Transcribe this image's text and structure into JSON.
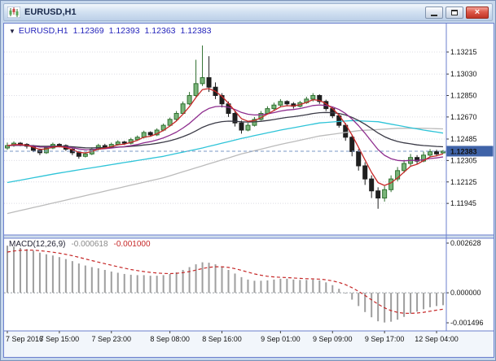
{
  "window": {
    "title": "EURUSD,H1",
    "controls": {
      "close_glyph": "×"
    }
  },
  "header": {
    "expand_glyph": "▼",
    "symbol": "EURUSD,H1",
    "open": "1.12369",
    "high": "1.12393",
    "low": "1.12363",
    "close": "1.12383"
  },
  "macd_header": {
    "label": "MACD(12,26,9)",
    "main_value": "-0.000618",
    "signal_value": "-0.001000"
  },
  "colors": {
    "bull_fill": "#7ab57a",
    "bull_stroke": "#2f6f2f",
    "bear_fill": "#1f1f1f",
    "bear_stroke": "#1f1f1f",
    "wick": "#2f6f2f",
    "ma_fast": "#c62828",
    "ma_medium": "#8e2d8e",
    "ma_slow": "#3a3a46",
    "ma_cyan": "#2ec4d8",
    "ma_long": "#bbbbbb",
    "macd_bar": "#9e9e9e",
    "macd_signal": "#c62828",
    "grid": "#dcdce4",
    "panel_border": "#6b7fce",
    "axis_text": "#111111",
    "price_tag_bg": "#3f63a8",
    "price_tag_text": "#ffffff",
    "divider_fill": "#cfdcec",
    "time_strip_fill": "#f2f6fb"
  },
  "chart_data": [
    {
      "type": "candlestick",
      "title": "EURUSD,H1",
      "symbol": "EURUSD",
      "timeframe": "H1",
      "ylim": [
        1.1168,
        1.1344
      ],
      "y_ticks": [
        "1.13215",
        "1.13030",
        "1.12850",
        "1.12670",
        "1.12485",
        "1.12305",
        "1.12125",
        "1.11945"
      ],
      "current_price": "1.12383",
      "x_ticks": [
        [
          0,
          "7 Sep 2016"
        ],
        [
          8,
          "7 Sep 15:00"
        ],
        [
          16,
          "7 Sep 23:00"
        ],
        [
          25,
          "8 Sep 08:00"
        ],
        [
          33,
          "8 Sep 16:00"
        ],
        [
          42,
          "9 Sep 01:00"
        ],
        [
          50,
          "9 Sep 09:00"
        ],
        [
          58,
          "9 Sep 17:00"
        ],
        [
          66,
          "12 Sep 04:00"
        ]
      ],
      "candles": [
        [
          1.1241,
          1.12455,
          1.12395,
          1.1243
        ],
        [
          1.1243,
          1.12465,
          1.1242,
          1.1245
        ],
        [
          1.1245,
          1.1246,
          1.12425,
          1.1244
        ],
        [
          1.1244,
          1.1245,
          1.12405,
          1.12425
        ],
        [
          1.12425,
          1.12435,
          1.12375,
          1.1239
        ],
        [
          1.1239,
          1.12405,
          1.1235,
          1.1237
        ],
        [
          1.1237,
          1.1242,
          1.1236,
          1.1241
        ],
        [
          1.1241,
          1.12455,
          1.124,
          1.1244
        ],
        [
          1.1244,
          1.1245,
          1.12415,
          1.1243
        ],
        [
          1.1243,
          1.1244,
          1.12385,
          1.124
        ],
        [
          1.124,
          1.1241,
          1.1235,
          1.1237
        ],
        [
          1.1237,
          1.12385,
          1.1232,
          1.1234
        ],
        [
          1.1234,
          1.12375,
          1.1233,
          1.1236
        ],
        [
          1.1236,
          1.12415,
          1.1235,
          1.124
        ],
        [
          1.124,
          1.12445,
          1.1239,
          1.1243
        ],
        [
          1.1243,
          1.12445,
          1.12405,
          1.1242
        ],
        [
          1.1242,
          1.12455,
          1.1241,
          1.1244
        ],
        [
          1.1244,
          1.12475,
          1.1243,
          1.1246
        ],
        [
          1.1246,
          1.1247,
          1.12435,
          1.1245
        ],
        [
          1.1245,
          1.12495,
          1.1244,
          1.1248
        ],
        [
          1.1248,
          1.12515,
          1.1247,
          1.125
        ],
        [
          1.125,
          1.12555,
          1.1249,
          1.1254
        ],
        [
          1.1254,
          1.1255,
          1.12505,
          1.1252
        ],
        [
          1.1252,
          1.12575,
          1.1251,
          1.1256
        ],
        [
          1.1256,
          1.12615,
          1.1255,
          1.126
        ],
        [
          1.126,
          1.12665,
          1.1259,
          1.1265
        ],
        [
          1.1265,
          1.1272,
          1.1264,
          1.127
        ],
        [
          1.127,
          1.128,
          1.1269,
          1.1278
        ],
        [
          1.1278,
          1.1288,
          1.1277,
          1.1285
        ],
        [
          1.1285,
          1.1315,
          1.1284,
          1.1295
        ],
        [
          1.1295,
          1.1327,
          1.1293,
          1.13
        ],
        [
          1.13,
          1.1318,
          1.1288,
          1.1292
        ],
        [
          1.1292,
          1.1296,
          1.1282,
          1.1285
        ],
        [
          1.1285,
          1.1287,
          1.1275,
          1.1278
        ],
        [
          1.1278,
          1.128,
          1.1267,
          1.127
        ],
        [
          1.127,
          1.1272,
          1.1259,
          1.1262
        ],
        [
          1.1262,
          1.1264,
          1.1253,
          1.1256
        ],
        [
          1.1256,
          1.1262,
          1.1255,
          1.126
        ],
        [
          1.126,
          1.1267,
          1.1259,
          1.1265
        ],
        [
          1.1265,
          1.1272,
          1.1264,
          1.127
        ],
        [
          1.127,
          1.1276,
          1.1269,
          1.1274
        ],
        [
          1.1274,
          1.1279,
          1.1272,
          1.1277
        ],
        [
          1.1277,
          1.1282,
          1.1275,
          1.128
        ],
        [
          1.128,
          1.1281,
          1.1276,
          1.1278
        ],
        [
          1.1278,
          1.12795,
          1.1274,
          1.1276
        ],
        [
          1.1276,
          1.12805,
          1.1275,
          1.1279
        ],
        [
          1.1279,
          1.1284,
          1.1278,
          1.1282
        ],
        [
          1.1282,
          1.1287,
          1.128,
          1.1285
        ],
        [
          1.1285,
          1.1286,
          1.1278,
          1.128
        ],
        [
          1.128,
          1.12815,
          1.1272,
          1.1274
        ],
        [
          1.1274,
          1.12755,
          1.1266,
          1.1268
        ],
        [
          1.1268,
          1.127,
          1.1258,
          1.126
        ],
        [
          1.126,
          1.1262,
          1.1247,
          1.125
        ],
        [
          1.125,
          1.1252,
          1.1234,
          1.1238
        ],
        [
          1.1238,
          1.124,
          1.1222,
          1.1226
        ],
        [
          1.1226,
          1.1229,
          1.121,
          1.1215
        ],
        [
          1.1215,
          1.1218,
          1.1199,
          1.1205
        ],
        [
          1.1205,
          1.1208,
          1.119,
          1.1199
        ],
        [
          1.1199,
          1.1209,
          1.1196,
          1.1206
        ],
        [
          1.1206,
          1.1218,
          1.1204,
          1.1215
        ],
        [
          1.1215,
          1.1225,
          1.1213,
          1.1222
        ],
        [
          1.1222,
          1.1231,
          1.122,
          1.1228
        ],
        [
          1.1228,
          1.1236,
          1.1226,
          1.1233
        ],
        [
          1.1233,
          1.1235,
          1.1227,
          1.123
        ],
        [
          1.123,
          1.1238,
          1.1229,
          1.1235
        ],
        [
          1.1235,
          1.124,
          1.1233,
          1.1238
        ],
        [
          1.1238,
          1.12395,
          1.1234,
          1.1236
        ],
        [
          1.12369,
          1.12393,
          1.12363,
          1.12383
        ]
      ],
      "overlays": [
        {
          "name": "ma-long-gray",
          "style": "keypoints",
          "color_key": "ma_long",
          "points": [
            [
              0,
              1.1186
            ],
            [
              8,
              1.1196
            ],
            [
              16,
              1.1206
            ],
            [
              24,
              1.1216
            ],
            [
              30,
              1.1226
            ],
            [
              36,
              1.1236
            ],
            [
              42,
              1.1244
            ],
            [
              48,
              1.1251
            ],
            [
              54,
              1.12555
            ],
            [
              60,
              1.12575
            ],
            [
              64,
              1.12575
            ],
            [
              67,
              1.1257
            ]
          ]
        },
        {
          "name": "ma-cyan",
          "style": "keypoints",
          "color_key": "ma_cyan",
          "points": [
            [
              0,
              1.1212
            ],
            [
              8,
              1.122
            ],
            [
              16,
              1.1227
            ],
            [
              24,
              1.1234
            ],
            [
              30,
              1.1241
            ],
            [
              36,
              1.1249
            ],
            [
              42,
              1.1256
            ],
            [
              48,
              1.1262
            ],
            [
              53,
              1.1264
            ],
            [
              57,
              1.1263
            ],
            [
              61,
              1.1259
            ],
            [
              64,
              1.1256
            ],
            [
              67,
              1.12535
            ]
          ]
        },
        {
          "name": "ma-slow-dark",
          "style": "ema",
          "period": 30,
          "color_key": "ma_slow"
        },
        {
          "name": "ma-medium-magenta",
          "style": "ema",
          "period": 13,
          "color_key": "ma_medium"
        },
        {
          "name": "ma-fast-red",
          "style": "ema",
          "period": 4,
          "color_key": "ma_fast"
        }
      ]
    },
    {
      "type": "macd",
      "title": "MACD(12,26,9)",
      "params": "12,26,9",
      "ylim": [
        -0.0019,
        0.00272
      ],
      "y_ticks": [
        "0.002628",
        "0.000000",
        "-0.001496"
      ],
      "current_main": "-0.000618",
      "current_signal": "-0.001000",
      "values": [
        0.00235,
        0.0023,
        0.00224,
        0.00218,
        0.0021,
        0.002,
        0.00192,
        0.00186,
        0.00178,
        0.00168,
        0.00158,
        0.00146,
        0.00136,
        0.00128,
        0.00122,
        0.00114,
        0.00106,
        0.001,
        0.00094,
        0.0009,
        0.00088,
        0.00088,
        0.00085,
        0.00085,
        0.00088,
        0.00094,
        0.00102,
        0.00114,
        0.00128,
        0.00142,
        0.00152,
        0.0015,
        0.00142,
        0.0013,
        0.00114,
        0.00096,
        0.00078,
        0.00066,
        0.0006,
        0.0006,
        0.00062,
        0.00066,
        0.0007,
        0.0007,
        0.00066,
        0.00064,
        0.00064,
        0.00066,
        0.00062,
        0.00052,
        0.00038,
        0.0002,
        -4e-05,
        -0.00034,
        -0.00066,
        -0.00096,
        -0.00122,
        -0.00142,
        -0.00148,
        -0.00144,
        -0.00134,
        -0.0012,
        -0.00104,
        -0.00094,
        -0.00082,
        -0.00072,
        -0.00066,
        -0.000618
      ],
      "signal": {
        "style": "ema",
        "period": 9,
        "seed_delta": -0.0004
      }
    }
  ]
}
